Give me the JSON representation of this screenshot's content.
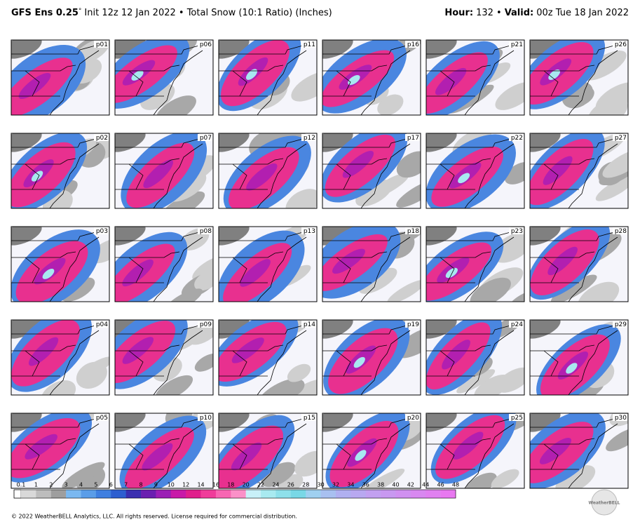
{
  "header": {
    "model": "GFS Ens 0.25",
    "degree": "°",
    "description": "Init 12z 12 Jan 2022 • Total Snow (10:1 Ratio) (Inches)",
    "hour_label": "Hour:",
    "hour_value": "132 •",
    "valid_label": "Valid:",
    "valid_value": "00z Tue 18 Jan 2022"
  },
  "panels": {
    "labels": [
      "p01",
      "p02",
      "p03",
      "p04",
      "p05",
      "p06",
      "p07",
      "p08",
      "p09",
      "p10",
      "p11",
      "p12",
      "p13",
      "p14",
      "p15",
      "p16",
      "p17",
      "p18",
      "p19",
      "p20",
      "p21",
      "p22",
      "p23",
      "p24",
      "p25",
      "p26",
      "p27",
      "p28",
      "p29",
      "p30"
    ]
  },
  "colorbar": {
    "labels": [
      "0.1",
      "1",
      "2",
      "3",
      "4",
      "5",
      "6",
      "7",
      "8",
      "9",
      "10",
      "12",
      "14",
      "16",
      "18",
      "20",
      "22",
      "24",
      "26",
      "28",
      "30",
      "32",
      "34",
      "36",
      "38",
      "40",
      "42",
      "44",
      "46",
      "48"
    ],
    "colors": [
      "#d9d9d9",
      "#bdbdbd",
      "#9e9e9e",
      "#7ab8f0",
      "#5a9de8",
      "#3f7fe0",
      "#2d5fd0",
      "#3b2fb0",
      "#6a1fb0",
      "#9b1fb5",
      "#c81aa8",
      "#e0208c",
      "#f03c9a",
      "#f766b2",
      "#fb90c8",
      "#c8f0f8",
      "#a8eaf0",
      "#8ee0ea",
      "#78d8e6",
      "#9fd0f0",
      "#a8c0f0",
      "#b0b0f0",
      "#b8a8f0",
      "#c2a0f0",
      "#c898f0",
      "#d090f0",
      "#d888f0",
      "#e080f0",
      "#e878f0"
    ]
  },
  "footer": {
    "copyright": "© 2022 WeatherBELL Analytics, LLC. All rights reserved. License required for commercial distribution.",
    "logo": "WeatherBELL"
  }
}
